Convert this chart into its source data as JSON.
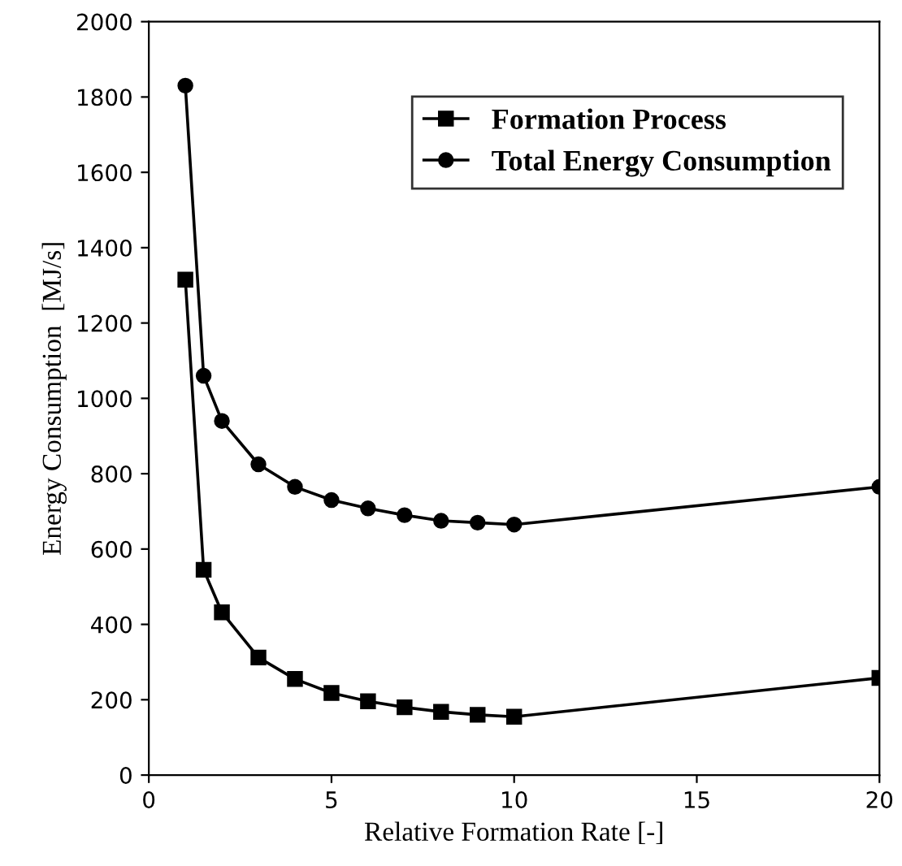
{
  "chart_data": {
    "type": "line",
    "xlabel": "Relative Formation Rate [-]",
    "ylabel": "Energy Consumption  [MJ/s]",
    "x": [
      1,
      1.5,
      2,
      3,
      4,
      5,
      6,
      7,
      8,
      9,
      10,
      20
    ],
    "series": [
      {
        "name": "Formation Process",
        "color": "#000000",
        "marker": "square",
        "values": [
          1315,
          545,
          432,
          312,
          255,
          218,
          196,
          180,
          168,
          160,
          155,
          258
        ]
      },
      {
        "name": "Total Energy Consumption",
        "color": "#000000",
        "marker": "circle",
        "values": [
          1830,
          1060,
          940,
          825,
          765,
          730,
          708,
          690,
          675,
          670,
          665,
          765
        ]
      }
    ],
    "xlim": [
      0,
      20
    ],
    "xticks": [
      0,
      5,
      10,
      15,
      20
    ],
    "ylim": [
      0,
      2000
    ],
    "yticks": [
      0,
      200,
      400,
      600,
      800,
      1000,
      1200,
      1400,
      1600,
      1800,
      2000
    ],
    "grid": false,
    "legend": "top right",
    "line_style": "solid"
  }
}
